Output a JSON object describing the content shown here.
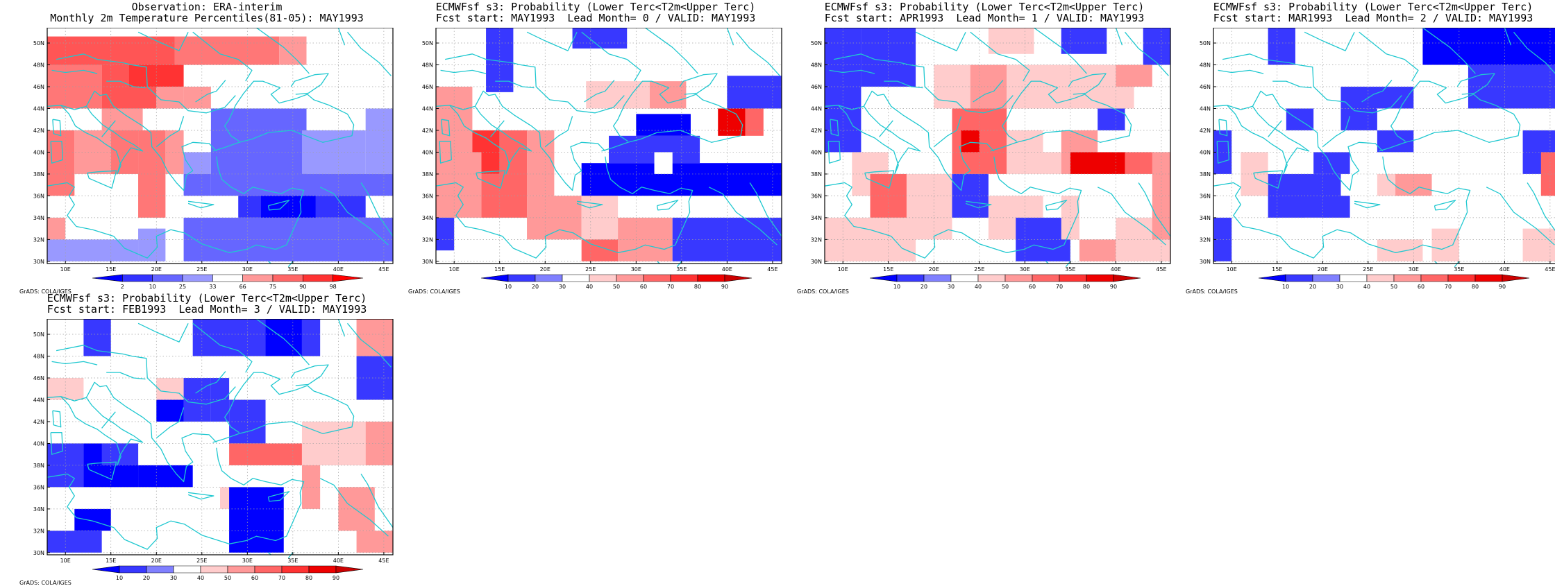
{
  "panels": [
    {
      "id": "obs",
      "title_line1": "Observation: ERA-interim",
      "title_line2": "Monthly 2m Temperature Percentiles(81-05): MAY1993",
      "colorbar_labels": [
        "2",
        "10",
        "25",
        "33",
        "66",
        "75",
        "90",
        "98"
      ],
      "colorbar_colors": [
        "#0000ff",
        "#3333ff",
        "#6666ff",
        "#9999ff",
        "#ffffff",
        "#ff9999",
        "#ff6666",
        "#ff3333",
        "#ff0000"
      ]
    },
    {
      "id": "lead0",
      "title_line1": "ECMWFsf s3: Probability (Lower Terc<T2m<Upper Terc)",
      "title_line2": "Fcst start: MAY1993  Lead Month= 0 / VALID: MAY1993",
      "colorbar_labels": [
        "10",
        "20",
        "30",
        "40",
        "50",
        "60",
        "70",
        "80",
        "90"
      ],
      "colorbar_colors": [
        "#0000ff",
        "#3838ff",
        "#8080ff",
        "#ffffff",
        "#ffcccc",
        "#ff9999",
        "#ff6666",
        "#ff3333",
        "#ee0000",
        "#cc0000"
      ]
    },
    {
      "id": "lead1",
      "title_line1": "ECMWFsf s3: Probability (Lower Terc<T2m<Upper Terc)",
      "title_line2": "Fcst start: APR1993  Lead Month= 1 / VALID: MAY1993",
      "colorbar_labels": [
        "10",
        "20",
        "30",
        "40",
        "50",
        "60",
        "70",
        "80",
        "90"
      ],
      "colorbar_colors": [
        "#0000ff",
        "#3838ff",
        "#8080ff",
        "#ffffff",
        "#ffcccc",
        "#ff9999",
        "#ff6666",
        "#ff3333",
        "#ee0000",
        "#cc0000"
      ]
    },
    {
      "id": "lead2",
      "title_line1": "ECMWFsf s3: Probability (Lower Terc<T2m<Upper Terc)",
      "title_line2": "Fcst start: MAR1993  Lead Month= 2 / VALID: MAY1993",
      "colorbar_labels": [
        "10",
        "20",
        "30",
        "40",
        "50",
        "60",
        "70",
        "80",
        "90"
      ],
      "colorbar_colors": [
        "#0000ff",
        "#3838ff",
        "#8080ff",
        "#ffffff",
        "#ffcccc",
        "#ff9999",
        "#ff6666",
        "#ff3333",
        "#ee0000",
        "#cc0000"
      ]
    },
    {
      "id": "lead3",
      "title_line1": "ECMWFsf s3: Probability (Lower Terc<T2m<Upper Terc)",
      "title_line2": "Fcst start: FEB1993  Lead Month= 3 / VALID: MAY1993",
      "colorbar_labels": [
        "10",
        "20",
        "30",
        "40",
        "50",
        "60",
        "70",
        "80",
        "90"
      ],
      "colorbar_colors": [
        "#0000ff",
        "#3838ff",
        "#8080ff",
        "#ffffff",
        "#ffcccc",
        "#ff9999",
        "#ff6666",
        "#ff3333",
        "#ee0000",
        "#cc0000"
      ]
    }
  ],
  "x_ticks": [
    "10E",
    "15E",
    "20E",
    "25E",
    "30E",
    "35E",
    "40E",
    "45E"
  ],
  "y_ticks": [
    "30N",
    "32N",
    "34N",
    "36N",
    "38N",
    "40N",
    "42N",
    "44N",
    "46N",
    "48N",
    "50N"
  ],
  "footer": "GrADS: COLA/IGES",
  "coast_color": "#20c8d0",
  "grid_color": "#a0a0a0"
}
